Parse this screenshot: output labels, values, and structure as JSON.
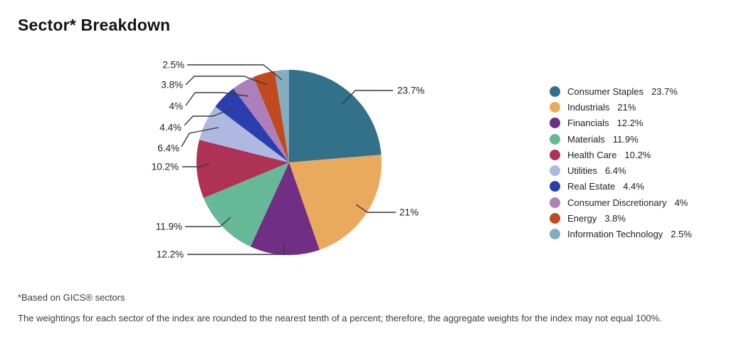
{
  "page": {
    "title": "Sector* Breakdown"
  },
  "chart_data": {
    "type": "pie",
    "title": "Sector* Breakdown",
    "start_angle_deg": 0,
    "direction": "clockwise",
    "legend_position": "right",
    "slices": [
      {
        "label": "Consumer Staples",
        "value": 23.7,
        "display": "23.7%",
        "color": "#33708a"
      },
      {
        "label": "Industrials",
        "value": 21,
        "display": "21%",
        "color": "#e9aa5d"
      },
      {
        "label": "Financials",
        "value": 12.2,
        "display": "12.2%",
        "color": "#702f84"
      },
      {
        "label": "Materials",
        "value": 11.9,
        "display": "11.9%",
        "color": "#65b998"
      },
      {
        "label": "Health Care",
        "value": 10.2,
        "display": "10.2%",
        "color": "#ae3156"
      },
      {
        "label": "Utilities",
        "value": 6.4,
        "display": "6.4%",
        "color": "#afb8e0"
      },
      {
        "label": "Real Estate",
        "value": 4.4,
        "display": "4.4%",
        "color": "#2b3eae"
      },
      {
        "label": "Consumer Discretionary",
        "value": 4,
        "display": "4%",
        "color": "#ac80ba"
      },
      {
        "label": "Energy",
        "value": 3.8,
        "display": "3.8%",
        "color": "#c0491d"
      },
      {
        "label": "Information Technology",
        "value": 2.5,
        "display": "2.5%",
        "color": "#84aebf"
      }
    ]
  },
  "footnotes": {
    "line1": "*Based on GICS® sectors",
    "line2": "The weightings for each sector of the index are rounded to the nearest tenth of a percent; therefore, the aggregate weights for the index may not equal 100%."
  }
}
